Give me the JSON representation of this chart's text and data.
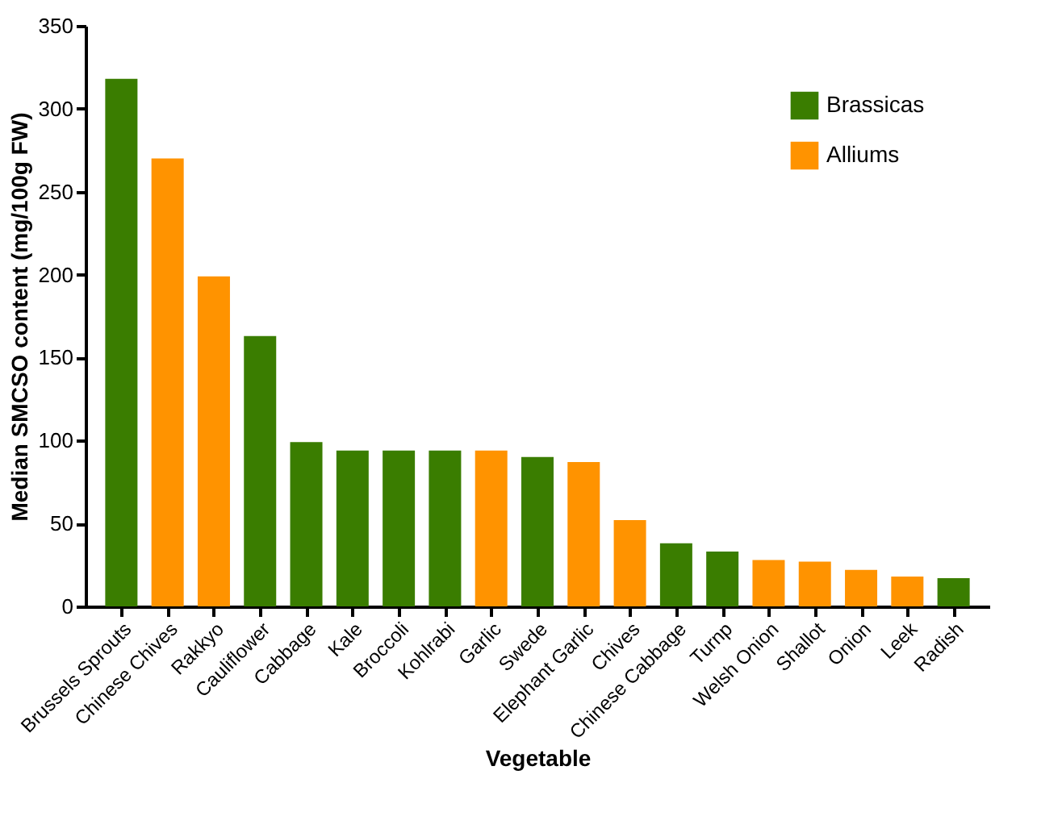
{
  "chart_data": {
    "type": "bar",
    "xlabel": "Vegetable",
    "ylabel": "Median SMCSO content (mg/100g FW)",
    "categories": [
      "Brussels Sprouts",
      "Chinese Chives",
      "Rakkyo",
      "Cauliflower",
      "Cabbage",
      "Kale",
      "Broccoli",
      "Kohlrabi",
      "Garlic",
      "Swede",
      "Elephant Garlic",
      "Chives",
      "Chinese Cabbage",
      "Turnp",
      "Welsh Onion",
      "Shallot",
      "Onion",
      "Leek",
      "Radish"
    ],
    "series": [
      {
        "name": "Brassicas",
        "color": "#3a7d00",
        "values": [
          318,
          null,
          null,
          163,
          99,
          94,
          94,
          94,
          null,
          90,
          null,
          null,
          38,
          33,
          null,
          null,
          null,
          null,
          17
        ]
      },
      {
        "name": "Alliums",
        "color": "#ff9300",
        "values": [
          null,
          270,
          199,
          null,
          null,
          null,
          null,
          null,
          94,
          null,
          87,
          52,
          null,
          null,
          28,
          27,
          22,
          18,
          null
        ]
      }
    ],
    "stacked": true,
    "ylim": [
      0,
      350
    ],
    "yticks": [
      0,
      50,
      100,
      150,
      200,
      250,
      300,
      350
    ],
    "grid": false,
    "legend": "top right"
  }
}
